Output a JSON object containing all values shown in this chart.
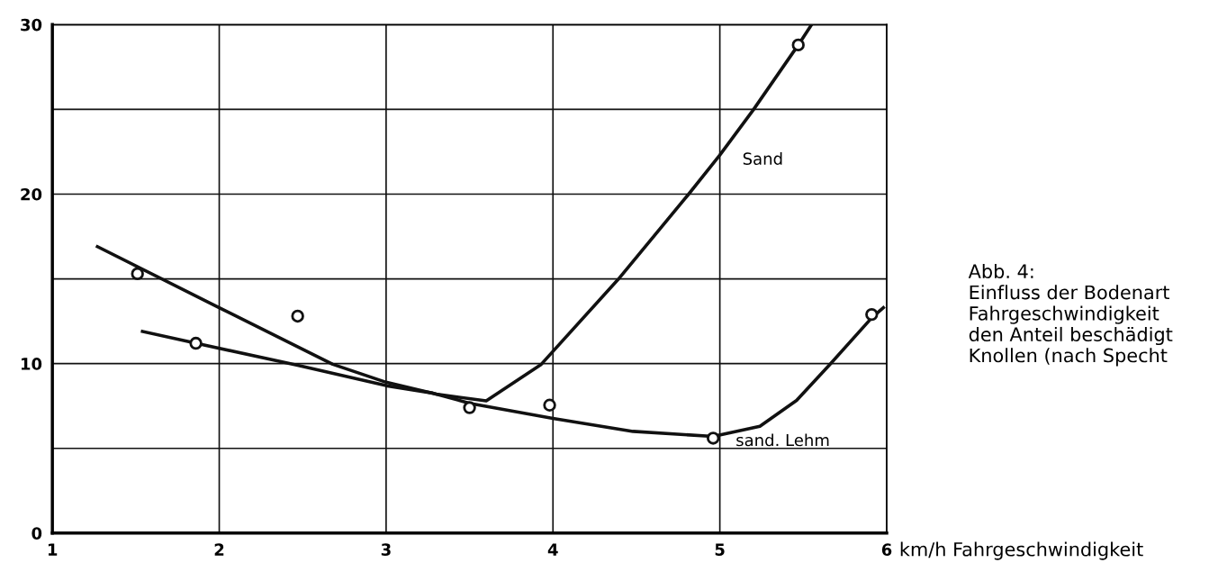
{
  "chart_data": {
    "type": "line",
    "xlabel": "km/h Fahrgeschwindigkeit",
    "annotations": [
      "Abb. 4:\nEinfluss der Bodenart\nFahrgeschwindigkeit\nden Anteil beschädigt\nKnollen (nach Specht"
    ],
    "xlim": [
      1,
      6
    ],
    "xticks": [
      1,
      2,
      3,
      4,
      5,
      6
    ],
    "ylim": [
      0,
      30
    ],
    "yticks": [
      0,
      10,
      20,
      30,
      {
        "value": 5,
        "label": null
      },
      {
        "value": 15,
        "label": null
      },
      {
        "value": 25,
        "label": null
      }
    ],
    "grid": true,
    "legend": false,
    "series": [
      {
        "type": "scatter",
        "marker": "circle",
        "color": "#111111",
        "x": [
          1.51,
          1.86,
          2.47,
          3.5,
          3.98,
          4.96,
          5.47,
          5.91
        ],
        "values": [
          15.3,
          11.2,
          12.8,
          7.4,
          7.55,
          5.6,
          28.8,
          12.9
        ]
      },
      {
        "name": "Sand",
        "color": "#111111",
        "x": [
          1.27,
          2.0,
          2.68,
          3.0,
          3.3,
          3.6,
          3.93,
          4.39,
          4.81,
          5.0,
          5.2,
          5.47,
          5.55
        ],
        "values": [
          16.9,
          13.3,
          9.96,
          8.9,
          8.2,
          7.8,
          9.96,
          14.96,
          19.96,
          22.3,
          24.96,
          28.8,
          30
        ]
      },
      {
        "name": "sand. Lehm",
        "color": "#111111",
        "x": [
          1.54,
          1.86,
          2.47,
          3.0,
          3.28,
          3.5,
          4.0,
          4.48,
          4.96,
          5.24,
          5.46,
          5.66,
          5.91,
          5.98
        ],
        "values": [
          11.9,
          11.2,
          9.9,
          8.7,
          8.26,
          7.66,
          6.77,
          6.0,
          5.7,
          6.3,
          7.83,
          9.96,
          12.7,
          13.3
        ]
      }
    ]
  }
}
